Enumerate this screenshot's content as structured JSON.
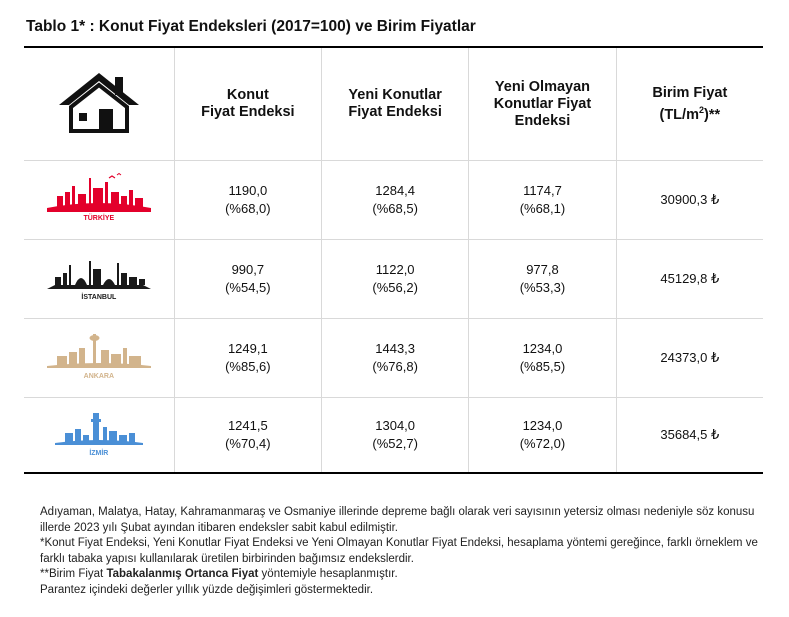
{
  "title": "Tablo 1* : Konut Fiyat Endeksleri (2017=100) ve Birim Fiyatlar",
  "header": {
    "col1": [
      "Konut",
      "Fiyat Endeksi"
    ],
    "col2": [
      "Yeni Konutlar",
      "Fiyat Endeksi"
    ],
    "col3": [
      "Yeni Olmayan",
      "Konutlar Fiyat",
      "Endeksi"
    ],
    "col4_line1": "Birim Fiyat",
    "col4_line2_pre": "(TL/m",
    "col4_sup": "2",
    "col4_line2_post": ")**"
  },
  "rows": [
    {
      "city": "TÜRKİYE",
      "color": "#e3002b",
      "konut": "1190,0",
      "konut_pct": "(%68,0)",
      "yeni": "1284,4",
      "yeni_pct": "(%68,5)",
      "eski": "1174,7",
      "eski_pct": "(%68,1)",
      "birim": "30900,3 ₺"
    },
    {
      "city": "İSTANBUL",
      "color": "#1a1a1a",
      "konut": "990,7",
      "konut_pct": "(%54,5)",
      "yeni": "1122,0",
      "yeni_pct": "(%56,2)",
      "eski": "977,8",
      "eski_pct": "(%53,3)",
      "birim": "45129,8 ₺"
    },
    {
      "city": "ANKARA",
      "color": "#d2b48c",
      "konut": "1249,1",
      "konut_pct": "(%85,6)",
      "yeni": "1443,3",
      "yeni_pct": "(%76,8)",
      "eski": "1234,0",
      "eski_pct": "(%85,5)",
      "birim": "24373,0 ₺"
    },
    {
      "city": "İZMİR",
      "color": "#4a8fd6",
      "konut": "1241,5",
      "konut_pct": "(%70,4)",
      "yeni": "1304,0",
      "yeni_pct": "(%52,7)",
      "eski": "1234,0",
      "eski_pct": "(%72,0)",
      "birim": "35684,5 ₺"
    }
  ],
  "notes": {
    "line1": "Adıyaman, Malatya, Hatay, Kahramanmaraş ve Osmaniye illerinde depreme bağlı olarak veri sayısının yetersiz olması nedeniyle söz konusu illerde 2023 yılı Şubat ayından itibaren endeksler sabit kabul edilmiştir.",
    "line2": "*Konut Fiyat Endeksi, Yeni Konutlar Fiyat Endeksi ve Yeni Olmayan Konutlar Fiyat Endeksi, hesaplama yöntemi gereğince, farklı örneklem ve farklı tabaka yapısı kullanılarak üretilen birbirinden bağımsız endekslerdir.",
    "line3_pre": "**Birim Fiyat ",
    "line3_bold": "Tabakalanmış Ortanca Fiyat",
    "line3_post": " yöntemiyle hesaplanmıştır.",
    "line4": "Parantez içindeki değerler yıllık yüzde değişimleri göstermektedir."
  }
}
